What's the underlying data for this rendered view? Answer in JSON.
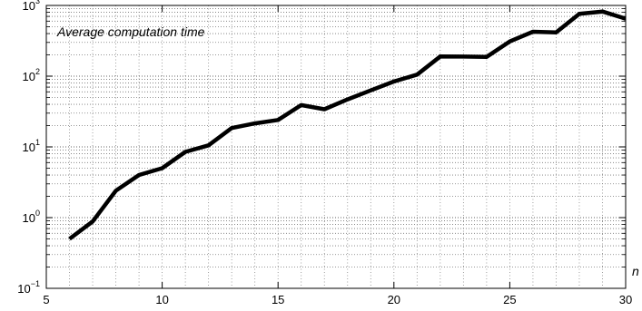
{
  "chart_data": {
    "type": "line",
    "title": "",
    "annotation": "Average computation time",
    "xlabel": "n",
    "ylabel": "",
    "xlim": [
      5,
      30
    ],
    "ylim": [
      0.1,
      1000
    ],
    "yscale": "log",
    "grid": true,
    "x_ticks": [
      "5",
      "10",
      "15",
      "20",
      "25",
      "30"
    ],
    "y_ticks": [
      {
        "base": "10",
        "exp": "−1"
      },
      {
        "base": "10",
        "exp": "0"
      },
      {
        "base": "10",
        "exp": "1"
      },
      {
        "base": "10",
        "exp": "2"
      },
      {
        "base": "10",
        "exp": "3"
      }
    ],
    "series": [
      {
        "x": [
          6,
          7,
          8,
          9,
          10,
          11,
          12,
          13,
          14,
          15,
          16,
          17,
          18,
          19,
          20,
          21,
          22,
          23,
          24,
          25,
          26,
          27,
          28,
          29,
          30
        ],
        "values": [
          0.5,
          0.88,
          2.4,
          4.0,
          5.0,
          8.5,
          10.5,
          18.5,
          21.5,
          24,
          39,
          34,
          47,
          63,
          84,
          105,
          190,
          189,
          187,
          310,
          425,
          415,
          760,
          820,
          650
        ],
        "color": "#000000"
      }
    ]
  }
}
